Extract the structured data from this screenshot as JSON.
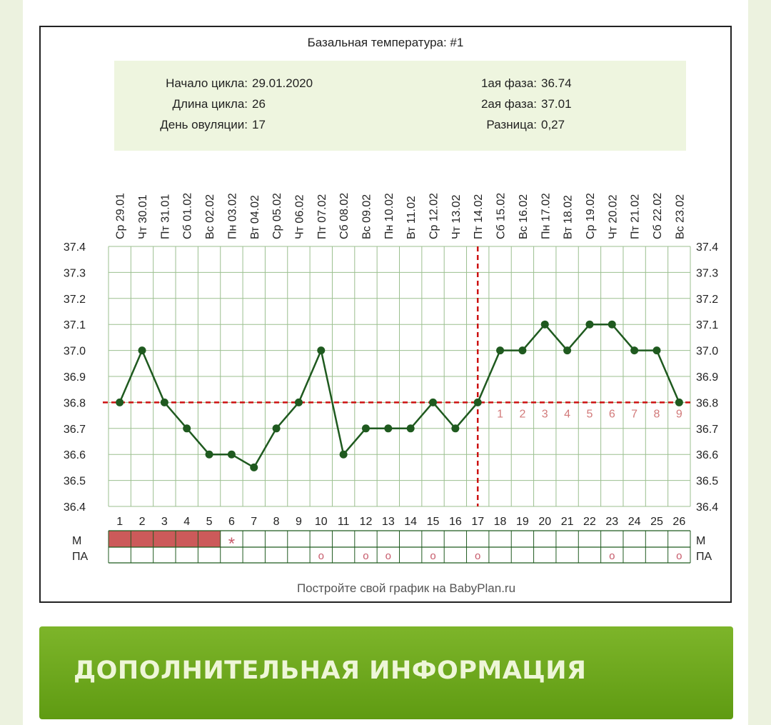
{
  "chart_data": {
    "type": "line",
    "title": "Базальная температура: #1",
    "info": {
      "cycle_start_label": "Начало цикла:",
      "cycle_start": "29.01.2020",
      "cycle_length_label": "Длина цикла:",
      "cycle_length": "26",
      "ovulation_day_label": "День овуляции:",
      "ovulation_day": "17",
      "phase1_label": "1ая фаза:",
      "phase1": "36.74",
      "phase2_label": "2ая фаза:",
      "phase2": "37.01",
      "diff_label": "Разница:",
      "diff": "0,27"
    },
    "dates": [
      "Ср 29.01",
      "Чт 30.01",
      "Пт 31.01",
      "Сб 01.02",
      "Вс 02.02",
      "Пн 03.02",
      "Вт 04.02",
      "Ср 05.02",
      "Чт 06.02",
      "Пт 07.02",
      "Сб 08.02",
      "Вс 09.02",
      "Пн 10.02",
      "Вт 11.02",
      "Ср 12.02",
      "Чт 13.02",
      "Пт 14.02",
      "Сб 15.02",
      "Вс 16.02",
      "Пн 17.02",
      "Вт 18.02",
      "Ср 19.02",
      "Чт 20.02",
      "Пт 21.02",
      "Сб 22.02",
      "Вс 23.02"
    ],
    "days": [
      "1",
      "2",
      "3",
      "4",
      "5",
      "6",
      "7",
      "8",
      "9",
      "10",
      "11",
      "12",
      "13",
      "14",
      "15",
      "16",
      "17",
      "18",
      "19",
      "20",
      "21",
      "22",
      "23",
      "24",
      "25",
      "26"
    ],
    "values": [
      36.8,
      37.0,
      36.8,
      36.7,
      36.6,
      36.6,
      36.55,
      36.7,
      36.8,
      37.0,
      36.6,
      36.7,
      36.7,
      36.7,
      36.8,
      36.7,
      36.8,
      37.0,
      37.0,
      37.1,
      37.0,
      37.1,
      37.1,
      37.0,
      37.0,
      36.8
    ],
    "ylim": [
      36.4,
      37.4
    ],
    "yticks": [
      "37.4",
      "37.3",
      "37.2",
      "37.1",
      "37.0",
      "36.9",
      "36.8",
      "36.7",
      "36.6",
      "36.5",
      "36.4"
    ],
    "coverline": 36.8,
    "ovulation_day_index": 17,
    "luteal_day_labels": [
      "1",
      "2",
      "3",
      "4",
      "5",
      "6",
      "7",
      "8",
      "9"
    ],
    "m_label": "М",
    "pa_label": "ПА",
    "m_filled_days": [
      1,
      2,
      3,
      4,
      5
    ],
    "m_star_day": 6,
    "m_star_symbol": "*",
    "pa_days": [
      10,
      12,
      13,
      15,
      17,
      23,
      26
    ],
    "pa_symbol": "o",
    "footer": "Постройте свой график на BabyPlan.ru",
    "colors": {
      "line": "#1f5a1f",
      "grid": "#9bbf8f",
      "coverline": "#cc1111",
      "info_bg": "#eef5df",
      "menses": "#cc5a5a",
      "marker": "#c75b6b"
    }
  },
  "banner": {
    "title": "ДОПОЛНИТЕЛЬНАЯ ИНФОРМАЦИЯ"
  }
}
